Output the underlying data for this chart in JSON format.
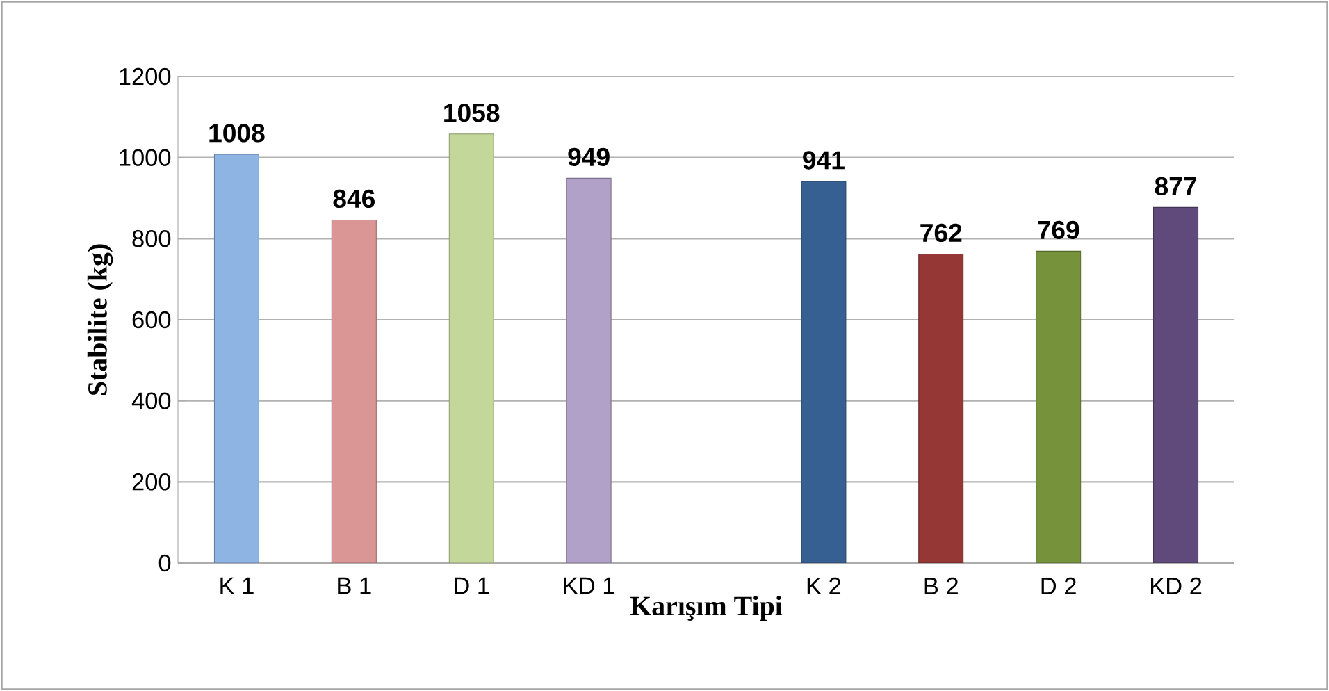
{
  "chart_data": {
    "type": "bar",
    "xlabel": "Karışım Tipi",
    "ylabel": "Stabilite (kg)",
    "categories": [
      "K 1",
      "B 1",
      "D 1",
      "KD 1",
      null,
      "K 2",
      "B 2",
      "D 2",
      "KD 2"
    ],
    "values": [
      1008,
      846,
      1058,
      949,
      null,
      941,
      762,
      769,
      877
    ],
    "colors": [
      "#8db4e2",
      "#da9694",
      "#c4d79b",
      "#b1a0c7",
      "#808080",
      "#366092",
      "#953735",
      "#76933c",
      "#604a7b"
    ],
    "ylim": [
      0,
      1200
    ],
    "yticks": [
      0,
      200,
      400,
      600,
      800,
      1000,
      1200
    ],
    "grid": "y",
    "data_labels": true
  }
}
